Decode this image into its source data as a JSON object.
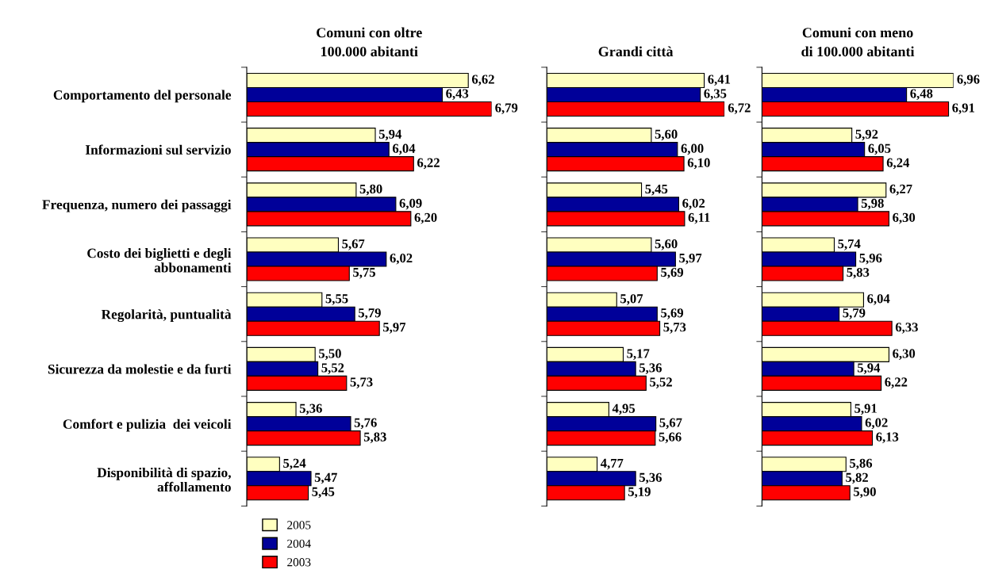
{
  "chart_data": [
    {
      "type": "bar",
      "orientation": "horizontal",
      "title": "Comuni con oltre\n100.000 abitanti",
      "categories": [
        "Comportamento del personale",
        "Informazioni sul servizio",
        "Frequenza, numero dei passaggi",
        "Costo dei biglietti e degli\nabbonamenti",
        "Regolarità, puntualità",
        "Sicurezza da molestie e da furti",
        "Comfort e pulizia  dei veicoli",
        "Disponibilità di spazio,\naffollamento"
      ],
      "xlim": [
        5,
        6.79
      ],
      "tick_labels": "y",
      "legend": "bottom left",
      "series": [
        {
          "name": "2005",
          "color": "#ffffc0",
          "values": [
            6.62,
            5.94,
            5.8,
            5.67,
            5.55,
            5.5,
            5.36,
            5.24
          ],
          "value_labels": [
            "6,62",
            "5,94",
            "5,80",
            "5,67",
            "5,55",
            "5,50",
            "5,36",
            "5,24"
          ]
        },
        {
          "name": "2004",
          "color": "#000099",
          "values": [
            6.43,
            6.04,
            6.09,
            6.02,
            5.79,
            5.52,
            5.76,
            5.47
          ],
          "value_labels": [
            "6,43",
            "6,04",
            "6,09",
            "6,02",
            "5,79",
            "5,52",
            "5,76",
            "5,47"
          ]
        },
        {
          "name": "2003",
          "color": "#ff0000",
          "values": [
            6.79,
            6.22,
            6.2,
            5.75,
            5.97,
            5.73,
            5.83,
            5.45
          ],
          "value_labels": [
            "6,79",
            "6,22",
            "6,20",
            "5,75",
            "5,97",
            "5,73",
            "5,83",
            "5,45"
          ]
        }
      ]
    },
    {
      "type": "bar",
      "orientation": "horizontal",
      "title": "Grandi città",
      "categories": [
        null,
        null,
        null,
        null,
        null,
        null,
        null,
        null
      ],
      "xlim": [
        4,
        6.72
      ],
      "tick_labels": false,
      "series": [
        {
          "color": "#ffffc0",
          "values": [
            6.41,
            5.6,
            5.45,
            5.6,
            5.07,
            5.17,
            4.95,
            4.77
          ],
          "value_labels": [
            "6,41",
            "5,60",
            "5,45",
            "5,60",
            "5,07",
            "5,17",
            "4,95",
            "4,77"
          ]
        },
        {
          "color": "#000099",
          "values": [
            6.35,
            6.0,
            6.02,
            5.97,
            5.69,
            5.36,
            5.67,
            5.36
          ],
          "value_labels": [
            "6,35",
            "6,00",
            "6,02",
            "5,97",
            "5,69",
            "5,36",
            "5,67",
            "5,36"
          ]
        },
        {
          "color": "#ff0000",
          "values": [
            6.72,
            6.1,
            6.11,
            5.69,
            5.73,
            5.52,
            5.66,
            5.19
          ],
          "value_labels": [
            "6,72",
            "6,10",
            "6,11",
            "5,69",
            "5,73",
            "5,52",
            "5,66",
            "5,19"
          ]
        }
      ]
    },
    {
      "type": "bar",
      "orientation": "horizontal",
      "title": "Comuni con meno\ndi 100.000 abitanti",
      "categories": [
        null,
        null,
        null,
        null,
        null,
        null,
        null,
        null
      ],
      "xlim": [
        5,
        6.96
      ],
      "tick_labels": false,
      "series": [
        {
          "color": "#ffffc0",
          "values": [
            6.96,
            5.92,
            6.27,
            5.74,
            6.04,
            6.3,
            5.91,
            5.86
          ],
          "value_labels": [
            "6,96",
            "5,92",
            "6,27",
            "5,74",
            "6,04",
            "6,30",
            "5,91",
            "5,86"
          ]
        },
        {
          "color": "#000099",
          "values": [
            6.48,
            6.05,
            5.98,
            5.96,
            5.79,
            5.94,
            6.02,
            5.82
          ],
          "value_labels": [
            "6,48",
            "6,05",
            "5,98",
            "5,96",
            "5,79",
            "5,94",
            "6,02",
            "5,82"
          ]
        },
        {
          "color": "#ff0000",
          "values": [
            6.91,
            6.24,
            6.3,
            5.83,
            6.33,
            6.22,
            6.13,
            5.9
          ],
          "value_labels": [
            "6,91",
            "6,24",
            "6,30",
            "5,83",
            "6,33",
            "6,22",
            "6,13",
            "5,90"
          ]
        }
      ]
    }
  ]
}
